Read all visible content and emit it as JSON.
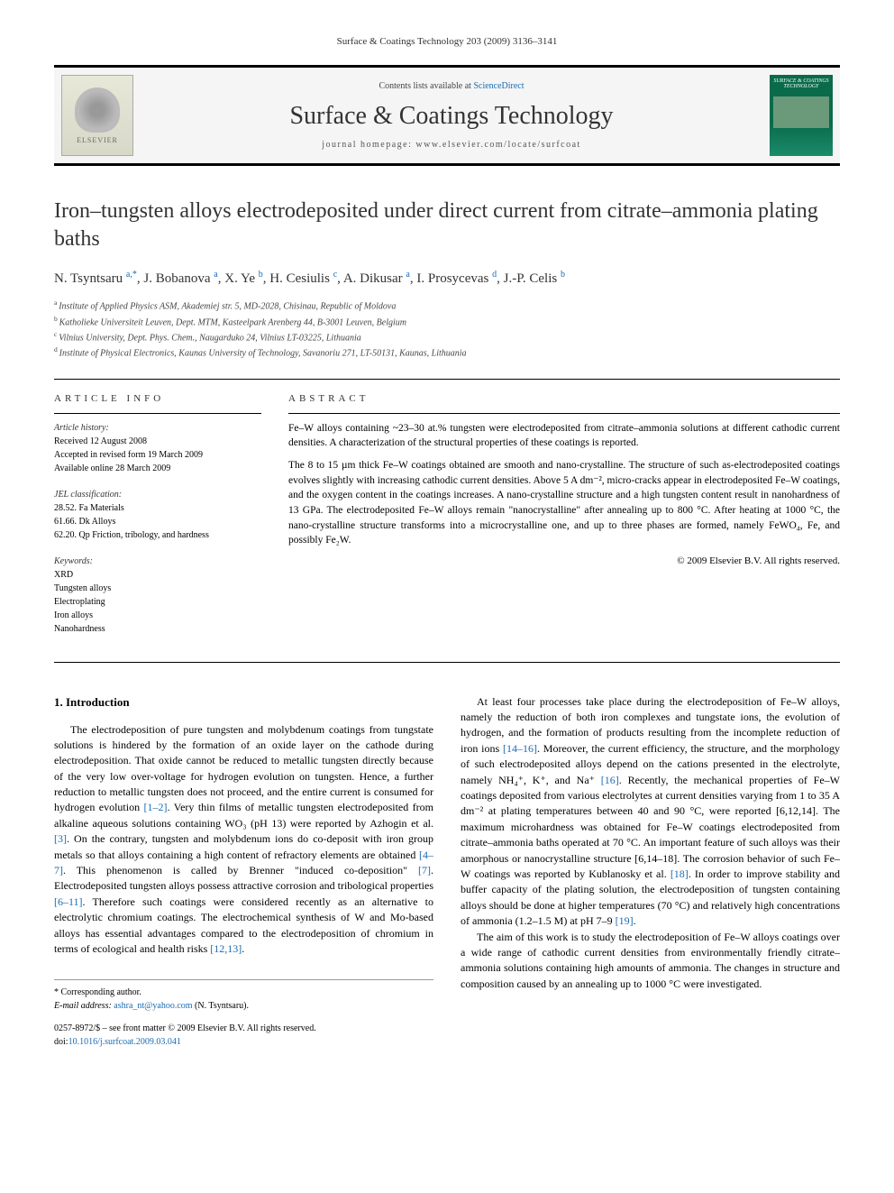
{
  "header": {
    "running_head": "Surface & Coatings Technology 203 (2009) 3136–3141"
  },
  "banner": {
    "contents_text": "Contents lists available at ",
    "contents_link": "ScienceDirect",
    "journal_name": "Surface & Coatings Technology",
    "homepage_label": "journal homepage: ",
    "homepage_url": "www.elsevier.com/locate/surfcoat",
    "publisher": "ELSEVIER",
    "cover_title": "SURFACE & COATINGS TECHNOLOGY"
  },
  "article": {
    "title": "Iron–tungsten alloys electrodeposited under direct current from citrate–ammonia plating baths",
    "authors": [
      {
        "name": "N. Tsyntsaru",
        "aff": "a",
        "corr": true
      },
      {
        "name": "J. Bobanova",
        "aff": "a"
      },
      {
        "name": "X. Ye",
        "aff": "b"
      },
      {
        "name": "H. Cesiulis",
        "aff": "c"
      },
      {
        "name": "A. Dikusar",
        "aff": "a"
      },
      {
        "name": "I. Prosycevas",
        "aff": "d"
      },
      {
        "name": "J.-P. Celis",
        "aff": "b"
      }
    ],
    "affiliations": [
      {
        "key": "a",
        "text": "Institute of Applied Physics ASM, Akademiej str. 5, MD-2028, Chisinau, Republic of Moldova"
      },
      {
        "key": "b",
        "text": "Katholieke Universiteit Leuven, Dept. MTM, Kasteelpark Arenberg 44, B-3001 Leuven, Belgium"
      },
      {
        "key": "c",
        "text": "Vilnius University, Dept. Phys. Chem., Naugarduko 24, Vilnius LT-03225, Lithuania"
      },
      {
        "key": "d",
        "text": "Institute of Physical Electronics, Kaunas University of Technology, Savanoriu 271, LT-50131, Kaunas, Lithuania"
      }
    ]
  },
  "info": {
    "heading": "ARTICLE INFO",
    "history_label": "Article history:",
    "history": [
      "Received 12 August 2008",
      "Accepted in revised form 19 March 2009",
      "Available online 28 March 2009"
    ],
    "jel_label": "JEL classification:",
    "jel": [
      "28.52. Fa Materials",
      "61.66. Dk Alloys",
      "62.20. Qp Friction, tribology, and hardness"
    ],
    "keywords_label": "Keywords:",
    "keywords": [
      "XRD",
      "Tungsten alloys",
      "Electroplating",
      "Iron alloys",
      "Nanohardness"
    ]
  },
  "abstract": {
    "heading": "ABSTRACT",
    "paragraphs": [
      "Fe–W alloys containing ~23–30 at.% tungsten were electrodeposited from citrate–ammonia solutions at different cathodic current densities. A characterization of the structural properties of these coatings is reported.",
      "The 8 to 15 µm thick Fe–W coatings obtained are smooth and nano-crystalline. The structure of such as-electrodeposited coatings evolves slightly with increasing cathodic current densities. Above 5 A dm⁻², micro-cracks appear in electrodeposited Fe–W coatings, and the oxygen content in the coatings increases. A nano-crystalline structure and a high tungsten content result in nanohardness of 13 GPa. The electrodeposited Fe–W alloys remain \"nanocrystalline\" after annealing up to 800 °C. After heating at 1000 °C, the nano-crystalline structure transforms into a microcrystalline one, and up to three phases are formed, namely FeWO₄, Fe, and possibly Fe₂W."
    ],
    "copyright": "© 2009 Elsevier B.V. All rights reserved."
  },
  "body": {
    "section_number": "1.",
    "section_title": "Introduction",
    "left_paragraphs": [
      "The electrodeposition of pure tungsten and molybdenum coatings from tungstate solutions is hindered by the formation of an oxide layer on the cathode during electrodeposition. That oxide cannot be reduced to metallic tungsten directly because of the very low over-voltage for hydrogen evolution on tungsten. Hence, a further reduction to metallic tungsten does not proceed, and the entire current is consumed for hydrogen evolution [1–2]. Very thin films of metallic tungsten electrodeposited from alkaline aqueous solutions containing WO₃ (pH 13) were reported by Azhogin et al. [3]. On the contrary, tungsten and molybdenum ions do co-deposit with iron group metals so that alloys containing a high content of refractory elements are obtained [4–7]. This phenomenon is called by Brenner \"induced co-deposition\" [7]. Electrodeposited tungsten alloys possess attractive corrosion and tribological properties [6–11]. Therefore such coatings were considered recently as an alternative to electrolytic chromium coatings. The electrochemical synthesis of W and Mo-based alloys has essential advantages compared to the electrodeposition of chromium in terms of ecological and health risks [12,13]."
    ],
    "right_paragraphs": [
      "At least four processes take place during the electrodeposition of Fe–W alloys, namely the reduction of both iron complexes and tungstate ions, the evolution of hydrogen, and the formation of products resulting from the incomplete reduction of iron ions [14–16]. Moreover, the current efficiency, the structure, and the morphology of such electrodeposited alloys depend on the cations presented in the electrolyte, namely NH₄⁺, K⁺, and Na⁺ [16]. Recently, the mechanical properties of Fe–W coatings deposited from various electrolytes at current densities varying from 1 to 35 A dm⁻² at plating temperatures between 40 and 90 °C, were reported [6,12,14]. The maximum microhardness was obtained for Fe–W coatings electrodeposited from citrate–ammonia baths operated at 70 °C. An important feature of such alloys was their amorphous or nanocrystalline structure [6,14–18]. The corrosion behavior of such Fe–W coatings was reported by Kublanosky et al. [18]. In order to improve stability and buffer capacity of the plating solution, the electrodeposition of tungsten containing alloys should be done at higher temperatures (70 °C) and relatively high concentrations of ammonia (1.2–1.5 M) at pH 7–9 [19].",
      "The aim of this work is to study the electrodeposition of Fe–W alloys coatings over a wide range of cathodic current densities from environmentally friendly citrate–ammonia solutions containing high amounts of ammonia. The changes in structure and composition caused by an annealing up to 1000 °C were investigated."
    ]
  },
  "footer": {
    "corr_label": "* Corresponding author.",
    "email_label": "E-mail address: ",
    "email": "ashra_nt@yahoo.com",
    "email_name": " (N. Tsyntsaru).",
    "issn_line": "0257-8972/$ – see front matter © 2009 Elsevier B.V. All rights reserved.",
    "doi_label": "doi:",
    "doi": "10.1016/j.surfcoat.2009.03.041"
  },
  "colors": {
    "link": "#1a6bb3",
    "text": "#000000",
    "banner_bg": "#f5f5f5",
    "cover_green": "#0a6b4a"
  }
}
